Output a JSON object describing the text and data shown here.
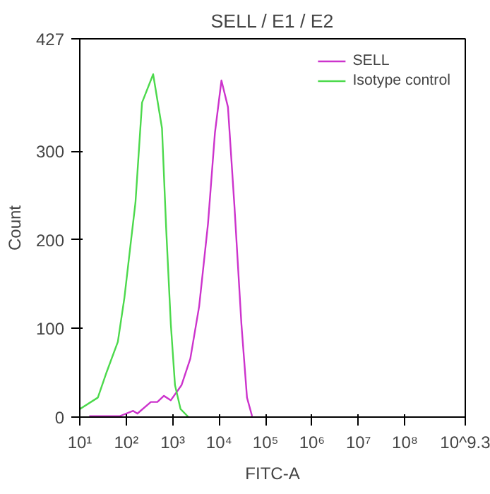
{
  "chart_data": {
    "type": "line",
    "title": "SELL / E1 / E2",
    "xlabel": "FITC-A",
    "ylabel": "Count",
    "log": "x",
    "grid": false,
    "legend": "top right",
    "xlim": [
      10,
      1995262315
    ],
    "xticks": [
      {
        "value": 10,
        "label": "10¹"
      },
      {
        "value": 100,
        "label": "10²"
      },
      {
        "value": 1000,
        "label": "10³"
      },
      {
        "value": 10000,
        "label": "10⁴"
      },
      {
        "value": 100000,
        "label": "10⁵"
      },
      {
        "value": 1000000,
        "label": "10⁶"
      },
      {
        "value": 10000000,
        "label": "10⁷"
      },
      {
        "value": 100000000,
        "label": "10⁸"
      },
      {
        "value": 1995262315,
        "label": "10^9.3"
      }
    ],
    "ylim": [
      0,
      427
    ],
    "yticks": [
      0,
      100,
      200,
      300,
      427
    ],
    "series": [
      {
        "name": "SELL",
        "color": "#cc33cc",
        "x": [
          16,
          72,
          141,
          174,
          339,
          468,
          646,
          912,
          1549,
          2399,
          3715,
          5754,
          8128,
          11220,
          15490,
          21380,
          30200,
          39810,
          51290
        ],
        "values": [
          1,
          1,
          7,
          4,
          17,
          17,
          24,
          19,
          36,
          66,
          125,
          218,
          321,
          380,
          350,
          238,
          105,
          22,
          1
        ]
      },
      {
        "name": "Isotype control",
        "color": "#4cd94c",
        "x": [
          10,
          24.5,
          38,
          66,
          91,
          126,
          158,
          219,
          380,
          589,
          724,
          912,
          1122,
          1479,
          2188
        ],
        "values": [
          9,
          22,
          51,
          85,
          134,
          198,
          242,
          355,
          387,
          326,
          213,
          105,
          36,
          9,
          0
        ]
      }
    ]
  }
}
